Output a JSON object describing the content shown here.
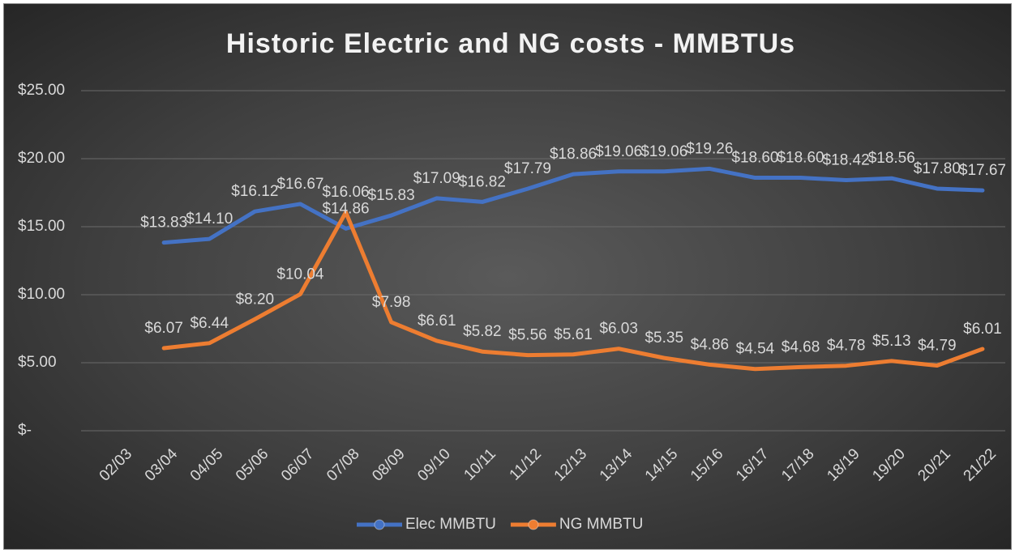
{
  "chart_data": {
    "type": "line",
    "title": "Historic Electric and NG costs - MMBTUs",
    "categories": [
      "02/03",
      "03/04",
      "04/05",
      "05/06",
      "06/07",
      "07/08",
      "08/09",
      "09/10",
      "10/11",
      "11/12",
      "12/13",
      "13/14",
      "14/15",
      "15/16",
      "16/17",
      "17/18",
      "18/19",
      "19/20",
      "20/21",
      "21/22"
    ],
    "series": [
      {
        "name": "Elec MMBTU",
        "color": "#4472c4",
        "values": [
          null,
          13.83,
          14.1,
          16.12,
          16.67,
          14.86,
          15.83,
          17.09,
          16.82,
          17.79,
          18.86,
          19.06,
          19.06,
          19.26,
          18.6,
          18.6,
          18.42,
          18.56,
          17.8,
          17.67
        ],
        "value_labels": [
          null,
          "$13.83",
          "$14.10",
          "$16.12",
          "$16.67",
          "$14.86",
          "$15.83",
          "$17.09",
          "$16.82",
          "$17.79",
          "$18.86",
          "$19.06",
          "$19.06",
          "$19.26",
          "$18.60",
          "$18.60",
          "$18.42",
          "$18.56",
          "$17.80",
          "$17.67"
        ]
      },
      {
        "name": "NG MMBTU",
        "color": "#ed7d31",
        "values": [
          null,
          6.07,
          6.44,
          8.2,
          10.04,
          16.06,
          7.98,
          6.61,
          5.82,
          5.56,
          5.61,
          6.03,
          5.35,
          4.86,
          4.54,
          4.68,
          4.78,
          5.13,
          4.79,
          6.01
        ],
        "value_labels": [
          null,
          "$6.07",
          "$6.44",
          "$8.20",
          "$10.04",
          "$16.06",
          "$7.98",
          "$6.61",
          "$5.82",
          "$5.56",
          "$5.61",
          "$6.03",
          "$5.35",
          "$4.86",
          "$4.54",
          "$4.68",
          "$4.78",
          "$5.13",
          "$4.79",
          "$6.01"
        ]
      }
    ],
    "ylim": [
      0,
      25
    ],
    "yticks": [
      {
        "value": 0,
        "label": "$-"
      },
      {
        "value": 5,
        "label": "$5.00"
      },
      {
        "value": 10,
        "label": "$10.00"
      },
      {
        "value": 15,
        "label": "$15.00"
      },
      {
        "value": 20,
        "label": "$20.00"
      },
      {
        "value": 25,
        "label": "$25.00"
      }
    ],
    "grid": true,
    "legend": "bottom"
  }
}
